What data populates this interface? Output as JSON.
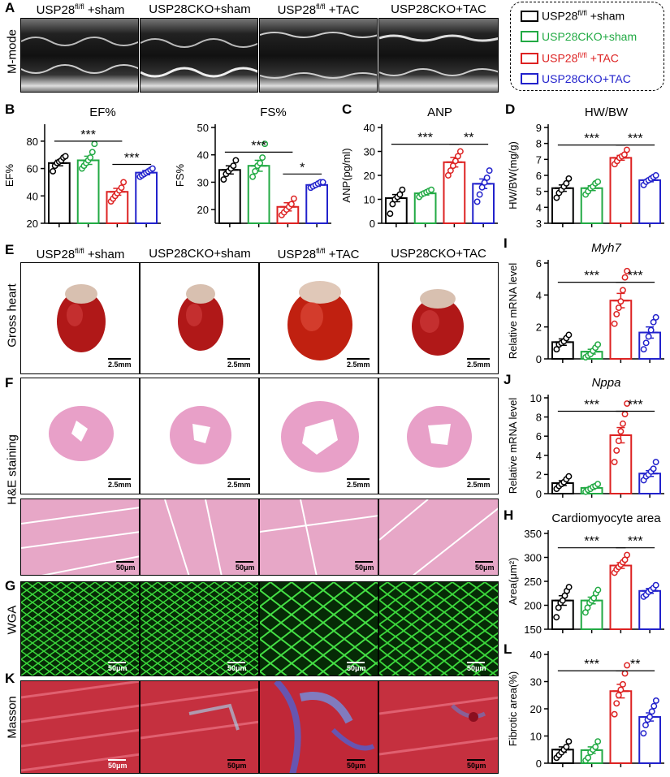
{
  "panel_labels": {
    "A": "A",
    "B": "B",
    "C": "C",
    "D": "D",
    "E": "E",
    "F": "F",
    "G": "G",
    "K": "K",
    "I": "I",
    "J": "J",
    "H": "H",
    "L": "L"
  },
  "groups": [
    {
      "base": "USP28",
      "sup": "fl/fl",
      "suffix": " +sham",
      "color": "#000000"
    },
    {
      "base": "USP28CKO+sham",
      "sup": "",
      "suffix": "",
      "color": "#22aa44"
    },
    {
      "base": "USP28",
      "sup": "fl/fl",
      "suffix": " +TAC",
      "color": "#dd2222"
    },
    {
      "base": "USP28CKO+TAC",
      "sup": "",
      "suffix": "",
      "color": "#2222cc"
    }
  ],
  "row_labels": {
    "mmode": "M-mode",
    "gross": "Gross heart",
    "he": "H&E staining",
    "wga": "WGA",
    "masson": "Masson"
  },
  "scale_bars": {
    "gross": "2.5mm",
    "he_low": "2.5mm",
    "micro": "50μm"
  },
  "chart_data": [
    {
      "id": "EF",
      "type": "bar",
      "title": "EF%",
      "ylabel": "EF%",
      "ylim": [
        20,
        90
      ],
      "yticks": [
        20,
        40,
        60,
        80
      ],
      "categories": [
        "USP28fl/fl +sham",
        "USP28CKO+sham",
        "USP28fl/fl +TAC",
        "USP28CKO+TAC"
      ],
      "values": [
        64,
        66,
        43,
        57
      ],
      "errors": [
        2,
        3,
        2.5,
        1.5
      ],
      "points": [
        [
          58,
          62,
          64,
          65,
          66,
          68,
          69
        ],
        [
          60,
          62,
          64,
          66,
          68,
          72,
          78
        ],
        [
          36,
          38,
          40,
          42,
          44,
          46,
          50
        ],
        [
          54,
          55,
          56,
          57,
          58,
          59,
          60
        ]
      ],
      "sig": [
        {
          "from": 0,
          "to": 2,
          "label": "***",
          "y": 80
        },
        {
          "from": 2,
          "to": 3,
          "label": "***",
          "y": 63
        }
      ]
    },
    {
      "id": "FS",
      "type": "bar",
      "title": "FS%",
      "ylabel": "FS%",
      "ylim": [
        15,
        50
      ],
      "yticks": [
        20,
        30,
        40,
        50
      ],
      "categories": [
        "USP28fl/fl +sham",
        "USP28CKO+sham",
        "USP28fl/fl +TAC",
        "USP28CKO+TAC"
      ],
      "values": [
        34.5,
        36,
        21,
        29
      ],
      "errors": [
        1.5,
        2,
        1.5,
        0.5
      ],
      "points": [
        [
          31,
          33,
          34,
          35,
          36,
          38
        ],
        [
          32,
          34,
          36,
          37,
          39,
          44
        ],
        [
          18,
          19,
          20,
          21,
          22,
          24
        ],
        [
          28,
          28.5,
          29,
          29.5,
          30,
          30
        ]
      ],
      "sig": [
        {
          "from": 0,
          "to": 2,
          "label": "***",
          "y": 41
        },
        {
          "from": 2,
          "to": 3,
          "label": "*",
          "y": 33
        }
      ]
    },
    {
      "id": "ANP",
      "type": "bar",
      "title": "ANP",
      "ylabel": "ANP(pg/ml)",
      "ylim": [
        0,
        40
      ],
      "yticks": [
        0,
        10,
        20,
        30,
        40
      ],
      "categories": [
        "USP28fl/fl +sham",
        "USP28CKO+sham",
        "USP28fl/fl +TAC",
        "USP28CKO+TAC"
      ],
      "values": [
        10.5,
        12.5,
        25.5,
        16.5
      ],
      "errors": [
        1.5,
        0.7,
        2,
        2
      ],
      "points": [
        [
          4,
          8,
          10,
          11,
          12,
          14
        ],
        [
          11,
          12,
          12.5,
          13,
          13.5,
          14
        ],
        [
          20,
          22,
          24,
          26,
          28,
          30
        ],
        [
          9,
          12,
          15,
          17,
          19,
          22
        ]
      ],
      "sig": [
        {
          "from": 0,
          "to": 2,
          "label": "***",
          "y": 33
        },
        {
          "from": 2,
          "to": 3,
          "label": "**",
          "y": 33
        }
      ]
    },
    {
      "id": "HWBW",
      "type": "bar",
      "title": "HW/BW",
      "ylabel": "HW/BW(mg/g)",
      "ylim": [
        3,
        9
      ],
      "yticks": [
        3,
        4,
        5,
        6,
        7,
        8,
        9
      ],
      "categories": [
        "USP28fl/fl +sham",
        "USP28CKO+sham",
        "USP28fl/fl +TAC",
        "USP28CKO+TAC"
      ],
      "values": [
        5.2,
        5.2,
        7.1,
        5.7
      ],
      "errors": [
        0.2,
        0.15,
        0.15,
        0.1
      ],
      "points": [
        [
          4.6,
          4.9,
          5.1,
          5.3,
          5.5,
          5.8
        ],
        [
          4.8,
          5.0,
          5.2,
          5.3,
          5.5,
          5.6
        ],
        [
          6.7,
          6.9,
          7.1,
          7.2,
          7.3,
          7.6
        ],
        [
          5.4,
          5.6,
          5.7,
          5.8,
          5.9,
          6.0
        ]
      ],
      "sig": [
        {
          "from": 0,
          "to": 2,
          "label": "***",
          "y": 7.9
        },
        {
          "from": 2,
          "to": 3,
          "label": "***",
          "y": 7.9
        }
      ]
    },
    {
      "id": "Myh7",
      "type": "bar",
      "title": "Myh7",
      "ylabel": "Relative mRNA level",
      "ylim": [
        0,
        6
      ],
      "yticks": [
        0,
        2,
        4,
        6
      ],
      "categories": [
        "USP28fl/fl +sham",
        "USP28CKO+sham",
        "USP28fl/fl +TAC",
        "USP28CKO+TAC"
      ],
      "values": [
        1.05,
        0.45,
        3.65,
        1.65
      ],
      "errors": [
        0.2,
        0.15,
        0.45,
        0.35
      ],
      "points": [
        [
          0.6,
          0.9,
          1.0,
          1.1,
          1.3,
          1.5
        ],
        [
          0.1,
          0.2,
          0.3,
          0.5,
          0.7,
          0.9
        ],
        [
          2.2,
          2.8,
          3.2,
          3.6,
          4.3,
          5.1,
          5.5
        ],
        [
          0.6,
          1.0,
          1.4,
          1.8,
          2.3,
          2.6
        ]
      ],
      "sig": [
        {
          "from": 0,
          "to": 2,
          "label": "***",
          "y": 4.8
        },
        {
          "from": 2,
          "to": 3,
          "label": "***",
          "y": 4.8
        }
      ]
    },
    {
      "id": "Nppa",
      "type": "bar",
      "title": "Nppa",
      "ylabel": "Relative mRNA level",
      "ylim": [
        0,
        10
      ],
      "yticks": [
        0,
        2,
        4,
        6,
        8,
        10
      ],
      "categories": [
        "USP28fl/fl +sham",
        "USP28CKO+sham",
        "USP28fl/fl +TAC",
        "USP28CKO+TAC"
      ],
      "values": [
        1.1,
        0.6,
        6.1,
        2.1
      ],
      "errors": [
        0.25,
        0.15,
        0.8,
        0.3
      ],
      "points": [
        [
          0.5,
          0.8,
          1.0,
          1.2,
          1.5,
          1.8
        ],
        [
          0.2,
          0.4,
          0.5,
          0.7,
          0.8,
          1.0
        ],
        [
          3.3,
          4.5,
          5.5,
          6.5,
          7.3,
          8.3,
          9.4
        ],
        [
          1.4,
          1.8,
          2.0,
          2.3,
          2.6,
          3.3
        ]
      ],
      "sig": [
        {
          "from": 0,
          "to": 2,
          "label": "***",
          "y": 8.6
        },
        {
          "from": 2,
          "to": 3,
          "label": "***",
          "y": 8.6
        }
      ]
    },
    {
      "id": "CMA",
      "type": "bar",
      "title": "Cardiomyocyte area",
      "ylabel": "Area(μm²)",
      "ylim": [
        150,
        350
      ],
      "yticks": [
        150,
        200,
        250,
        300,
        350
      ],
      "categories": [
        "USP28fl/fl +sham",
        "USP28CKO+sham",
        "USP28fl/fl +TAC",
        "USP28CKO+TAC"
      ],
      "values": [
        210,
        210,
        283,
        230
      ],
      "errors": [
        10,
        7,
        6,
        5
      ],
      "points": [
        [
          175,
          195,
          205,
          210,
          220,
          230,
          238
        ],
        [
          185,
          195,
          205,
          210,
          215,
          225,
          232
        ],
        [
          268,
          275,
          280,
          285,
          290,
          295,
          305
        ],
        [
          218,
          222,
          228,
          232,
          236,
          242
        ]
      ],
      "sig": [
        {
          "from": 0,
          "to": 2,
          "label": "***",
          "y": 320
        },
        {
          "from": 2,
          "to": 3,
          "label": "***",
          "y": 320
        }
      ]
    },
    {
      "id": "Fib",
      "type": "bar",
      "title": "",
      "ylabel": "Fibrotic area(%)",
      "ylim": [
        0,
        40
      ],
      "yticks": [
        0,
        10,
        20,
        30,
        40
      ],
      "categories": [
        "USP28fl/fl +sham",
        "USP28CKO+sham",
        "USP28fl/fl +TAC",
        "USP28CKO+TAC"
      ],
      "values": [
        5,
        4.8,
        26.5,
        17
      ],
      "errors": [
        1,
        1.2,
        2.5,
        1.5
      ],
      "points": [
        [
          2,
          3,
          4,
          5,
          6,
          8
        ],
        [
          1,
          2,
          4,
          5,
          6,
          8
        ],
        [
          18,
          22,
          25,
          27,
          29,
          33,
          36
        ],
        [
          11,
          14,
          16,
          17,
          19,
          21,
          23
        ]
      ],
      "sig": [
        {
          "from": 0,
          "to": 2,
          "label": "***",
          "y": 34
        },
        {
          "from": 2,
          "to": 3,
          "label": "**",
          "y": 34
        }
      ]
    }
  ]
}
